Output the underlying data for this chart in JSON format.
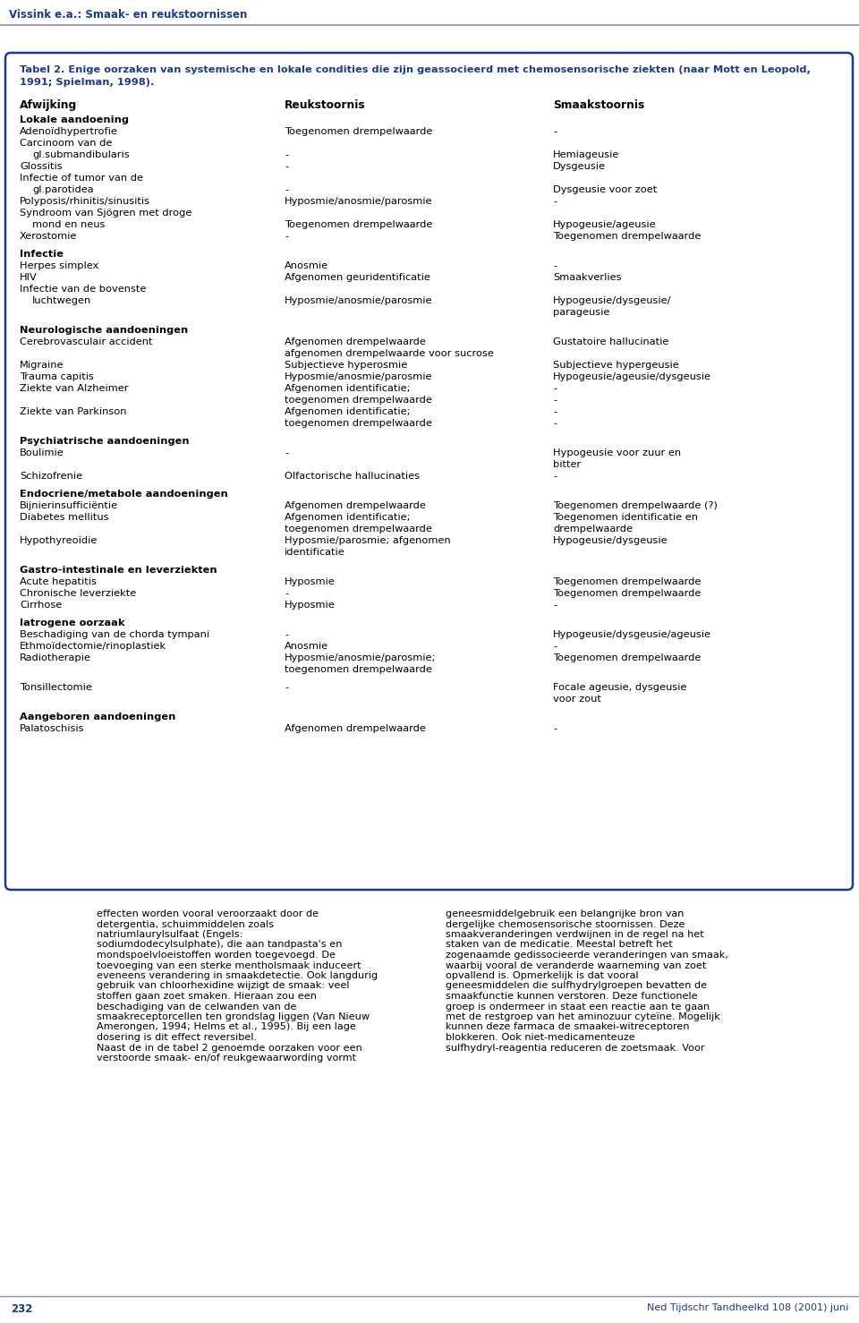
{
  "header_title": "Vissink e.a.: Smaak- en reukstoornissen",
  "page_number": "232",
  "journal": "Ned Tijdschr Tandheelkd 108 (2001) juni",
  "table_title_line1": "Tabel 2. Enige oorzaken van systemische en lokale condities die zijn geassocieerd met chemosensorische ziekten (naar Mott en Leopold,",
  "table_title_line2": "1991; Spielman, 1998).",
  "col_headers": [
    "Afwijking",
    "Reukstoornis",
    "Smaakstoornis"
  ],
  "rows": [
    {
      "indent": 0,
      "bold": true,
      "col0": "Lokale aandoening",
      "col1": "",
      "col2": "",
      "spacer_before": false
    },
    {
      "indent": 0,
      "bold": false,
      "col0": "Adenoïdhypertrofie",
      "col1": "Toegenomen drempelwaarde",
      "col2": "-",
      "spacer_before": false
    },
    {
      "indent": 0,
      "bold": false,
      "col0": "Carcinoom van de",
      "col1": "",
      "col2": "",
      "spacer_before": false
    },
    {
      "indent": 1,
      "bold": false,
      "col0": "gl.submandibularis",
      "col1": "-",
      "col2": "Hemiageusie",
      "spacer_before": false
    },
    {
      "indent": 0,
      "bold": false,
      "col0": "Glossitis",
      "col1": "-",
      "col2": "Dysgeusie",
      "spacer_before": false
    },
    {
      "indent": 0,
      "bold": false,
      "col0": "Infectie of tumor van de",
      "col1": "",
      "col2": "",
      "spacer_before": false
    },
    {
      "indent": 1,
      "bold": false,
      "col0": "gl.parotidea",
      "col1": "-",
      "col2": "Dysgeusie voor zoet",
      "spacer_before": false
    },
    {
      "indent": 0,
      "bold": false,
      "col0": "Polyposis/rhinitis/sinusitis",
      "col1": "Hyposmie/anosmie/parosmie",
      "col2": "-",
      "spacer_before": false
    },
    {
      "indent": 0,
      "bold": false,
      "col0": "Syndroom van Sjögren met droge",
      "col1": "",
      "col2": "",
      "spacer_before": false
    },
    {
      "indent": 1,
      "bold": false,
      "col0": "mond en neus",
      "col1": "Toegenomen drempelwaarde",
      "col2": "Hypogeusie/ageusie",
      "spacer_before": false
    },
    {
      "indent": 0,
      "bold": false,
      "col0": "Xerostomie",
      "col1": "-",
      "col2": "Toegenomen drempelwaarde",
      "spacer_before": false
    },
    {
      "indent": 0,
      "bold": true,
      "col0": "Infectie",
      "col1": "",
      "col2": "",
      "spacer_before": true
    },
    {
      "indent": 0,
      "bold": false,
      "col0": "Herpes simplex",
      "col1": "Anosmie",
      "col2": "-",
      "spacer_before": false
    },
    {
      "indent": 0,
      "bold": false,
      "col0": "HIV",
      "col1": "Afgenomen geuridentificatie",
      "col2": "Smaakverlies",
      "spacer_before": false
    },
    {
      "indent": 0,
      "bold": false,
      "col0": "Infectie van de bovenste",
      "col1": "",
      "col2": "",
      "spacer_before": false
    },
    {
      "indent": 1,
      "bold": false,
      "col0": "luchtwegen",
      "col1": "Hyposmie/anosmie/parosmie",
      "col2": "Hypogeusie/dysgeusie/\nparageusie",
      "spacer_before": false
    },
    {
      "indent": 0,
      "bold": true,
      "col0": "Neurologische aandoeningen",
      "col1": "",
      "col2": "",
      "spacer_before": true
    },
    {
      "indent": 0,
      "bold": false,
      "col0": "Cerebrovasculair accident",
      "col1": "Afgenomen drempelwaarde\nafgenomen drempelwaarde voor sucrose",
      "col2": "Gustatoire hallucinatie",
      "spacer_before": false
    },
    {
      "indent": 0,
      "bold": false,
      "col0": "Migraine",
      "col1": "Subjectieve hyperosmie",
      "col2": "Subjectieve hypergeusie",
      "spacer_before": false
    },
    {
      "indent": 0,
      "bold": false,
      "col0": "Trauma capitis",
      "col1": "Hyposmie/anosmie/parosmie",
      "col2": "Hypogeusie/ageusie/dysgeusie",
      "spacer_before": false
    },
    {
      "indent": 0,
      "bold": false,
      "col0": "Ziekte van Alzheimer",
      "col1": "Afgenomen identificatie;\ntoegenomen drempelwaarde",
      "col2": "-\n-",
      "spacer_before": false
    },
    {
      "indent": 0,
      "bold": false,
      "col0": "Ziekte van Parkinson",
      "col1": "Afgenomen identificatie;\ntoegenomen drempelwaarde",
      "col2": "-\n-",
      "spacer_before": false
    },
    {
      "indent": 0,
      "bold": true,
      "col0": "Psychiatrische aandoeningen",
      "col1": "",
      "col2": "",
      "spacer_before": true
    },
    {
      "indent": 0,
      "bold": false,
      "col0": "Boulimie",
      "col1": "-",
      "col2": "Hypogeusie voor zuur en\nbitter",
      "spacer_before": false
    },
    {
      "indent": 0,
      "bold": false,
      "col0": "Schizofrenie",
      "col1": "Olfactorische hallucinaties",
      "col2": "-",
      "spacer_before": false
    },
    {
      "indent": 0,
      "bold": true,
      "col0": "Endocriene/metabole aandoeningen",
      "col1": "",
      "col2": "",
      "spacer_before": true
    },
    {
      "indent": 0,
      "bold": false,
      "col0": "Bijnierinsufficiëntie",
      "col1": "Afgenomen drempelwaarde",
      "col2": "Toegenomen drempelwaarde (?)",
      "spacer_before": false
    },
    {
      "indent": 0,
      "bold": false,
      "col0": "Diabetes mellitus",
      "col1": "Afgenomen identificatie;\ntoegenomen drempelwaarde",
      "col2": "Toegenomen identificatie en\ndrempelwaarde",
      "spacer_before": false
    },
    {
      "indent": 0,
      "bold": false,
      "col0": "Hypothyreoïdie",
      "col1": "Hyposmie/parosmie; afgenomen\nidentificatie",
      "col2": "Hypogeusie/dysgeusie",
      "spacer_before": false
    },
    {
      "indent": 0,
      "bold": true,
      "col0": "Gastro-intestinale en leverziekten",
      "col1": "",
      "col2": "",
      "spacer_before": true
    },
    {
      "indent": 0,
      "bold": false,
      "col0": "Acute hepatitis",
      "col1": "Hyposmie",
      "col2": "Toegenomen drempelwaarde",
      "spacer_before": false
    },
    {
      "indent": 0,
      "bold": false,
      "col0": "Chronische leverziekte",
      "col1": "-",
      "col2": "Toegenomen drempelwaarde",
      "spacer_before": false
    },
    {
      "indent": 0,
      "bold": false,
      "col0": "Cirrhose",
      "col1": "Hyposmie",
      "col2": "-",
      "spacer_before": false
    },
    {
      "indent": 0,
      "bold": true,
      "col0": "Iatrogene oorzaak",
      "col1": "",
      "col2": "",
      "spacer_before": true
    },
    {
      "indent": 0,
      "bold": false,
      "col0": "Beschadiging van de chorda tympani",
      "col1": "-",
      "col2": "Hypogeusie/dysgeusie/ageusie",
      "spacer_before": false
    },
    {
      "indent": 0,
      "bold": false,
      "col0": "Ethmoïdectomie/rinoplastiek",
      "col1": "Anosmie",
      "col2": "-",
      "spacer_before": false
    },
    {
      "indent": 0,
      "bold": false,
      "col0": "Radiotherapie",
      "col1": "Hyposmie/anosmie/parosmie;\ntoegenomen drempelwaarde",
      "col2": "Toegenomen drempelwaarde",
      "spacer_before": false
    },
    {
      "indent": 0,
      "bold": false,
      "col0": "Tonsillectomie",
      "col1": "-",
      "col2": "Focale ageusie, dysgeusie\nvoor zout",
      "spacer_before": true
    },
    {
      "indent": 0,
      "bold": true,
      "col0": "Aangeboren aandoeningen",
      "col1": "",
      "col2": "",
      "spacer_before": true
    },
    {
      "indent": 0,
      "bold": false,
      "col0": "Palatoschisis",
      "col1": "Afgenomen drempelwaarde",
      "col2": "-",
      "spacer_before": false
    }
  ],
  "body_text_left": "effecten worden vooral veroorzaakt door de detergentia, schuimmiddelen zoals natriumlaurylsulfaat (Engels: sodiumdodecylsulphate), die aan tandpasta's en mondspoelvloeistoffen worden toegevoegd. De toevoeging van een sterke mentholsmaak induceert eveneens verandering in smaakdetectie. Ook langdurig gebruik van chloorhexidine wijzigt de smaak: veel stoffen gaan zoet smaken. Hieraan zou een beschadiging van de celwanden van de smaakreceptorcellen ten grondslag liggen (Van Nieuw Amerongen, 1994; Helms et al., 1995). Bij een lage dosering is dit effect reversibel.\n    Naast de in de tabel 2 genoemde oorzaken voor een verstoorde smaak- en/of reukgewaarwording vormt",
  "body_text_right": "geneesmiddelgebruik een belangrijke bron van dergelijke chemosensorische stoornissen. Deze smaakveranderingen verdwijnen in de regel na het staken van de medicatie. Meestal betreft het zogenaamde gedissocieerde veranderingen van smaak, waarbij vooral de veranderde waarneming van zoet opvallend is. Opmerkelijk is dat vooral geneesmiddelen die sulfhydrylgroepen bevatten de smaakfunctie kunnen verstoren. Deze functionele groep is ondermeer in staat een reactie aan te gaan met de restgroep van het aminozuur cyteïne. Mogelijk kunnen deze farmaca de smaakei-witreceptoren blokkeren. Ook niet-medicamenteuze sulfhydryl-reagentia reduceren de zoetsmaak. Voor",
  "border_color": "#1a3a8c",
  "header_color": "#1a3a8c",
  "text_color": "#000000",
  "bg_color": "#ffffff"
}
